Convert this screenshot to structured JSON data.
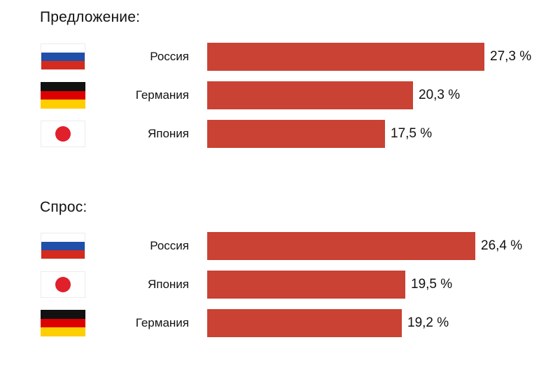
{
  "colors": {
    "bar": "#c94234",
    "russia": [
      "#ffffff",
      "#1f4fa8",
      "#d52b1e"
    ],
    "germany": [
      "#111111",
      "#dd0000",
      "#ffce00"
    ],
    "japan_disc": "#e0202b"
  },
  "chart_data": [
    {
      "type": "bar",
      "orientation": "horizontal",
      "title": "Предложение:",
      "categories": [
        "Россия",
        "Германия",
        "Япония"
      ],
      "flags": [
        "russia-flag-icon",
        "germany-flag-icon",
        "japan-flag-icon"
      ],
      "values": [
        27.3,
        20.3,
        17.5
      ],
      "value_labels": [
        "27,3 %",
        "20,3 %",
        "17,5 %"
      ],
      "xlim": [
        0,
        41
      ],
      "grid": false
    },
    {
      "type": "bar",
      "orientation": "horizontal",
      "title": "Спрос:",
      "categories": [
        "Россия",
        "Япония",
        "Германия"
      ],
      "flags": [
        "russia-flag-icon",
        "japan-flag-icon",
        "germany-flag-icon"
      ],
      "values": [
        26.4,
        19.5,
        19.2
      ],
      "value_labels": [
        "26,4 %",
        "19,5 %",
        "19,2 %"
      ],
      "xlim": [
        0,
        41
      ],
      "grid": false
    }
  ]
}
